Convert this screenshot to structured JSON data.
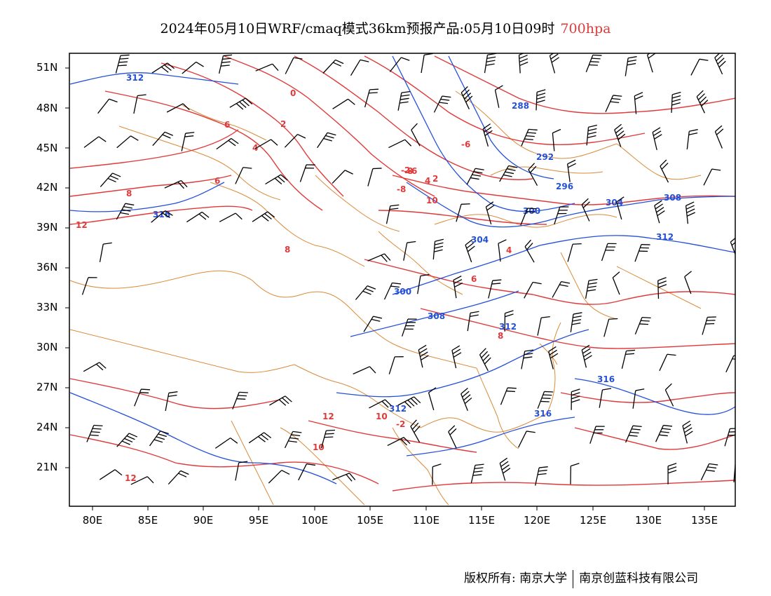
{
  "title": {
    "main": "2024年05月10日WRF/cmaq模式36km预报产品:05月10日09时",
    "level": "700hpa"
  },
  "axes": {
    "lat_ticks": [
      "51N",
      "48N",
      "45N",
      "42N",
      "39N",
      "36N",
      "33N",
      "30N",
      "27N",
      "24N",
      "21N"
    ],
    "lon_ticks": [
      "80E",
      "85E",
      "90E",
      "95E",
      "100E",
      "105E",
      "110E",
      "115E",
      "120E",
      "125E",
      "130E",
      "135E"
    ]
  },
  "colors": {
    "temperature_contour": "#e0393a",
    "height_contour": "#2450d8",
    "border": "#d98b3a",
    "wind_barb": "#000000",
    "level_text": "#e0393a"
  },
  "map_data": {
    "temperature_labels": [
      "12",
      "8",
      "6",
      "0",
      "2",
      "4",
      "6",
      "8",
      "10",
      "12",
      "-2",
      "-6",
      "-8",
      "10",
      "-2",
      "-6",
      "4",
      "2",
      "4",
      "6",
      "8",
      "10",
      "12",
      "-8"
    ],
    "height_labels": [
      "312",
      "316",
      "288",
      "292",
      "296",
      "300",
      "304",
      "308",
      "312",
      "316",
      "312",
      "304",
      "300",
      "308",
      "316",
      "312"
    ]
  },
  "credit": {
    "left": "版权所有: 南京大学",
    "right": "南京创蓝科技有限公司"
  }
}
